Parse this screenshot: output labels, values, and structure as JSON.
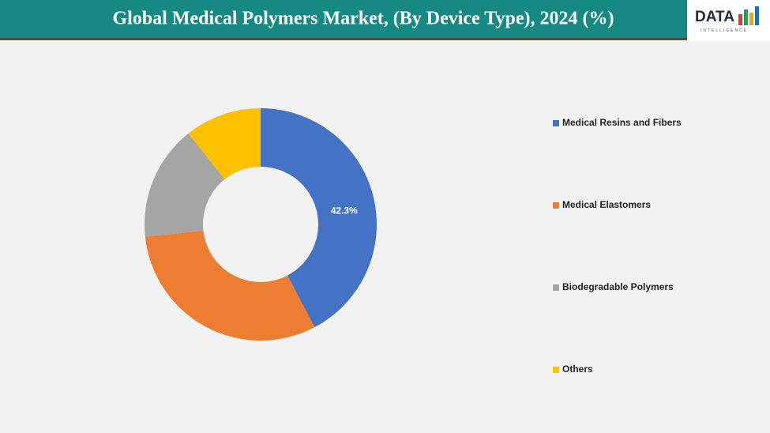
{
  "logo": {
    "text": "DATA",
    "subtitle": "INTELLIGENCE"
  },
  "chart_data": {
    "type": "donut",
    "title": "Global Medical Polymers Market, (By Device Type), 2024 (%)",
    "categories": [
      "Medical Resins and Fibers",
      "Medical Elastomers",
      "Biodegradable Polymers",
      "Others"
    ],
    "values": [
      42.3,
      31.0,
      16.0,
      10.7
    ],
    "value_labels": [
      "42.3%",
      null,
      null,
      null
    ],
    "colors": [
      "#4472c4",
      "#ed7d31",
      "#a5a5a5",
      "#ffc000"
    ],
    "legend": "right"
  }
}
